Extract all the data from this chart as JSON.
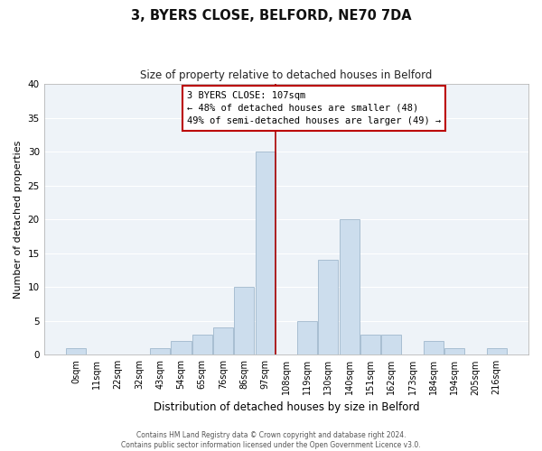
{
  "title": "3, BYERS CLOSE, BELFORD, NE70 7DA",
  "subtitle": "Size of property relative to detached houses in Belford",
  "xlabel": "Distribution of detached houses by size in Belford",
  "ylabel": "Number of detached properties",
  "footer_line1": "Contains HM Land Registry data © Crown copyright and database right 2024.",
  "footer_line2": "Contains public sector information licensed under the Open Government Licence v3.0.",
  "bar_labels": [
    "0sqm",
    "11sqm",
    "22sqm",
    "32sqm",
    "43sqm",
    "54sqm",
    "65sqm",
    "76sqm",
    "86sqm",
    "97sqm",
    "108sqm",
    "119sqm",
    "130sqm",
    "140sqm",
    "151sqm",
    "162sqm",
    "173sqm",
    "184sqm",
    "194sqm",
    "205sqm",
    "216sqm"
  ],
  "bar_values": [
    1,
    0,
    0,
    0,
    1,
    2,
    3,
    4,
    10,
    30,
    0,
    5,
    14,
    20,
    3,
    3,
    0,
    2,
    1,
    0,
    1
  ],
  "bar_color": "#ccdded",
  "bar_edge_color": "#a0b8cc",
  "vline_x": 9.5,
  "vline_color": "#aa0000",
  "annotation_title": "3 BYERS CLOSE: 107sqm",
  "annotation_line1": "← 48% of detached houses are smaller (48)",
  "annotation_line2": "49% of semi-detached houses are larger (49) →",
  "annotation_box_edge": "#bb0000",
  "ylim": [
    0,
    40
  ],
  "yticks": [
    0,
    5,
    10,
    15,
    20,
    25,
    30,
    35,
    40
  ],
  "background_color": "#ffffff",
  "axes_bg_color": "#eef3f8",
  "grid_color": "#ffffff"
}
